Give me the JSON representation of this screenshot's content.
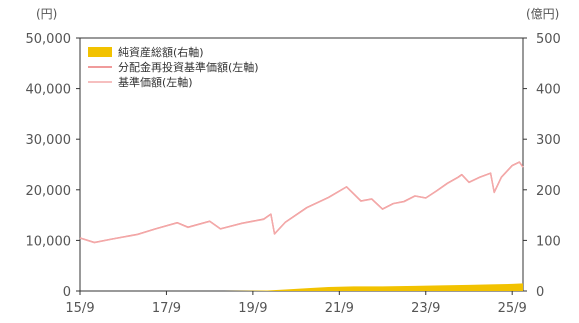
{
  "chart_data": {
    "type": "line",
    "left_unit": "(円)",
    "right_unit": "(億円)",
    "x_ticks": [
      "15/9",
      "17/9",
      "19/9",
      "21/9",
      "23/9",
      "25/9"
    ],
    "x_range": [
      "2015-09",
      "2025-12"
    ],
    "y_left_range": [
      0,
      50000
    ],
    "y_left_ticks": [
      "0",
      "10,000",
      "20,000",
      "30,000",
      "40,000",
      "50,000"
    ],
    "y_right_range": [
      0,
      500
    ],
    "y_right_ticks": [
      "0",
      "100",
      "200",
      "300",
      "400",
      "500"
    ],
    "grid": false,
    "legend_position": "top-left",
    "legend": [
      "純資産総額(右軸)",
      "分配金再投資基準価額(左軸)",
      "基準価額(左軸)"
    ],
    "series": [
      {
        "name": "純資産総額(右軸)",
        "kind": "area",
        "axis": "right",
        "color": "#f2c200",
        "x": [
          "2015-09",
          "2019-01",
          "2020-01",
          "2020-06",
          "2021-01",
          "2021-06",
          "2022-01",
          "2022-09",
          "2023-06",
          "2024-01",
          "2024-09",
          "2025-03",
          "2025-09",
          "2025-12"
        ],
        "values": [
          0,
          0,
          1,
          3,
          6,
          8,
          9,
          9,
          10,
          11,
          12,
          13,
          14,
          15
        ]
      },
      {
        "name": "分配金再投資基準価額(左軸)",
        "kind": "line",
        "axis": "left",
        "color": "#ec7a7a",
        "x": [
          "2015-09",
          "2016-01",
          "2016-06",
          "2017-01",
          "2017-06",
          "2017-12",
          "2018-03",
          "2018-09",
          "2018-12",
          "2019-06",
          "2019-12",
          "2020-02",
          "2020-03",
          "2020-06",
          "2020-12",
          "2021-06",
          "2021-11",
          "2022-01",
          "2022-03",
          "2022-06",
          "2022-09",
          "2022-12",
          "2023-03",
          "2023-06",
          "2023-09",
          "2023-12",
          "2024-03",
          "2024-06",
          "2024-07",
          "2024-09",
          "2024-12",
          "2025-03",
          "2025-04",
          "2025-06",
          "2025-09",
          "2025-11",
          "2025-12"
        ],
        "values": [
          10500,
          9600,
          10300,
          11200,
          12300,
          13500,
          12600,
          13800,
          12300,
          13400,
          14200,
          15200,
          11300,
          13600,
          16500,
          18500,
          20600,
          19200,
          17800,
          18200,
          16200,
          17300,
          17700,
          18800,
          18400,
          19800,
          21300,
          22500,
          23000,
          21500,
          22500,
          23300,
          19500,
          22500,
          24800,
          25500,
          24500
        ]
      },
      {
        "name": "基準価額(左軸)",
        "kind": "line",
        "axis": "left",
        "color": "#f3aaaa",
        "x": [
          "2015-09",
          "2016-01",
          "2016-06",
          "2017-01",
          "2017-06",
          "2017-12",
          "2018-03",
          "2018-09",
          "2018-12",
          "2019-06",
          "2019-12",
          "2020-02",
          "2020-03",
          "2020-06",
          "2020-12",
          "2021-06",
          "2021-11",
          "2022-01",
          "2022-03",
          "2022-06",
          "2022-09",
          "2022-12",
          "2023-03",
          "2023-06",
          "2023-09",
          "2023-12",
          "2024-03",
          "2024-06",
          "2024-07",
          "2024-09",
          "2024-12",
          "2025-03",
          "2025-04",
          "2025-06",
          "2025-09",
          "2025-11",
          "2025-12"
        ],
        "values": [
          10450,
          9550,
          10250,
          11150,
          12250,
          13450,
          12550,
          13750,
          12250,
          13350,
          14150,
          15150,
          11250,
          13550,
          16450,
          18450,
          20550,
          19150,
          17750,
          18150,
          16150,
          17250,
          17650,
          18750,
          18350,
          19750,
          21250,
          22450,
          22950,
          21450,
          22450,
          23250,
          19450,
          22450,
          24750,
          25450,
          24450
        ]
      }
    ]
  }
}
